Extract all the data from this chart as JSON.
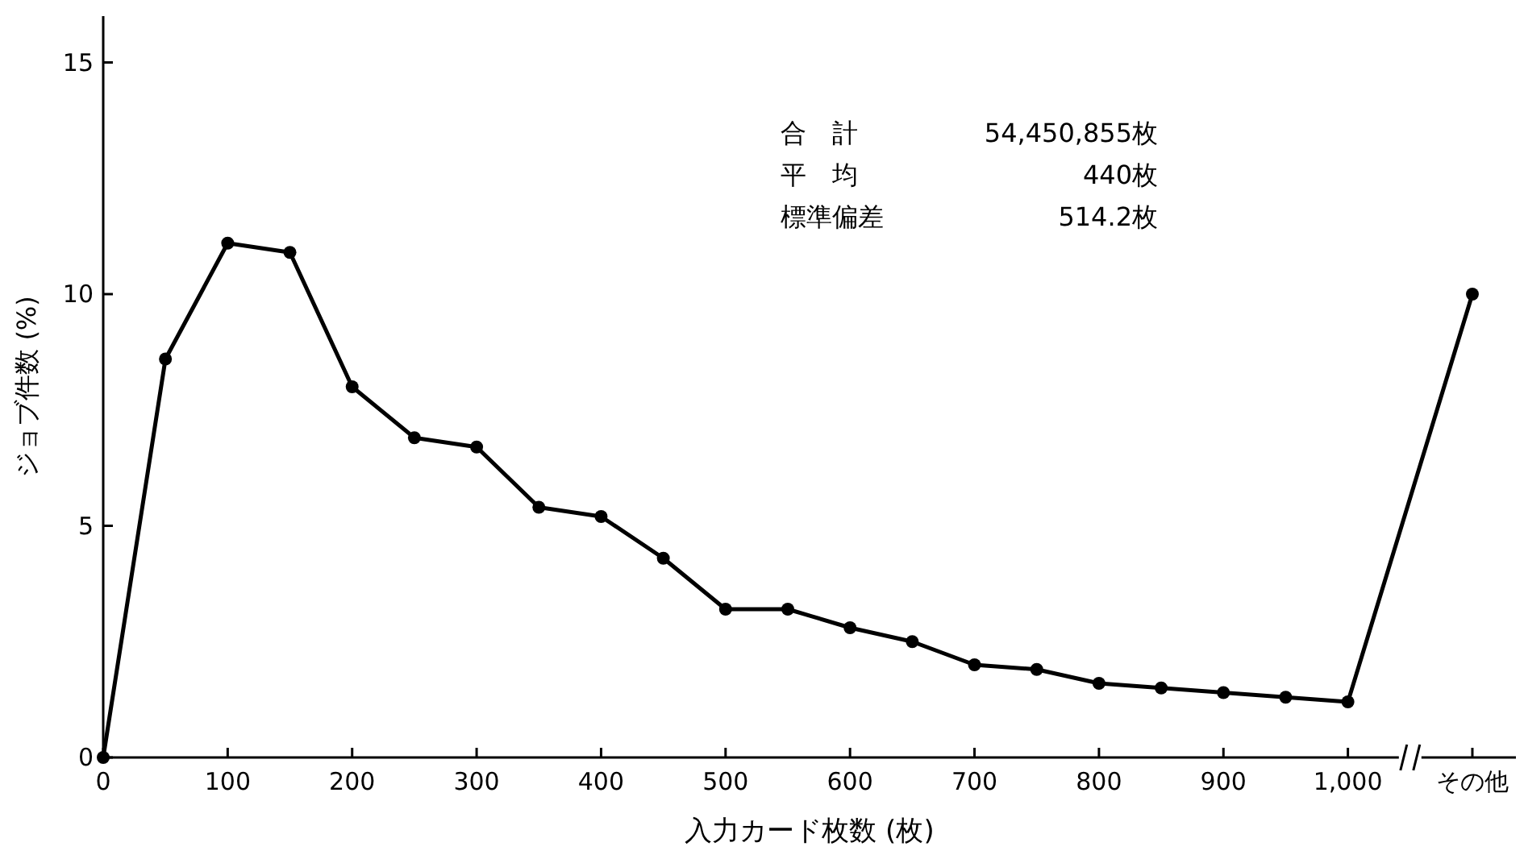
{
  "chart_data": {
    "type": "line",
    "xlabel": "入力カード枚数 (枚)",
    "ylabel": "ジョブ件数 (%)",
    "x": [
      0,
      50,
      100,
      150,
      200,
      250,
      300,
      350,
      400,
      450,
      500,
      550,
      600,
      650,
      700,
      750,
      800,
      850,
      900,
      950,
      1000,
      1100
    ],
    "series": [
      {
        "color": "#000000",
        "values": [
          0,
          8.6,
          11.1,
          10.9,
          8.0,
          6.9,
          6.7,
          5.4,
          5.2,
          4.3,
          3.2,
          3.2,
          2.8,
          2.5,
          2.0,
          1.9,
          1.6,
          1.5,
          1.4,
          1.3,
          1.2,
          10.0
        ]
      }
    ],
    "xlim": [
      0,
      1135
    ],
    "xticks": [
      0,
      100,
      200,
      300,
      400,
      500,
      600,
      700,
      800,
      900,
      {
        "value": 1000,
        "label": "1,000"
      },
      {
        "value": 1100,
        "label": "その他"
      }
    ],
    "ylim": [
      0,
      16
    ],
    "yticks": [
      0,
      5,
      10,
      15
    ],
    "marker": "circle",
    "line_style": "solid",
    "grid": false,
    "annotations": [
      "合　計 54,450,855枚",
      "平　均 440枚",
      "標準偏差 514.2枚"
    ]
  }
}
